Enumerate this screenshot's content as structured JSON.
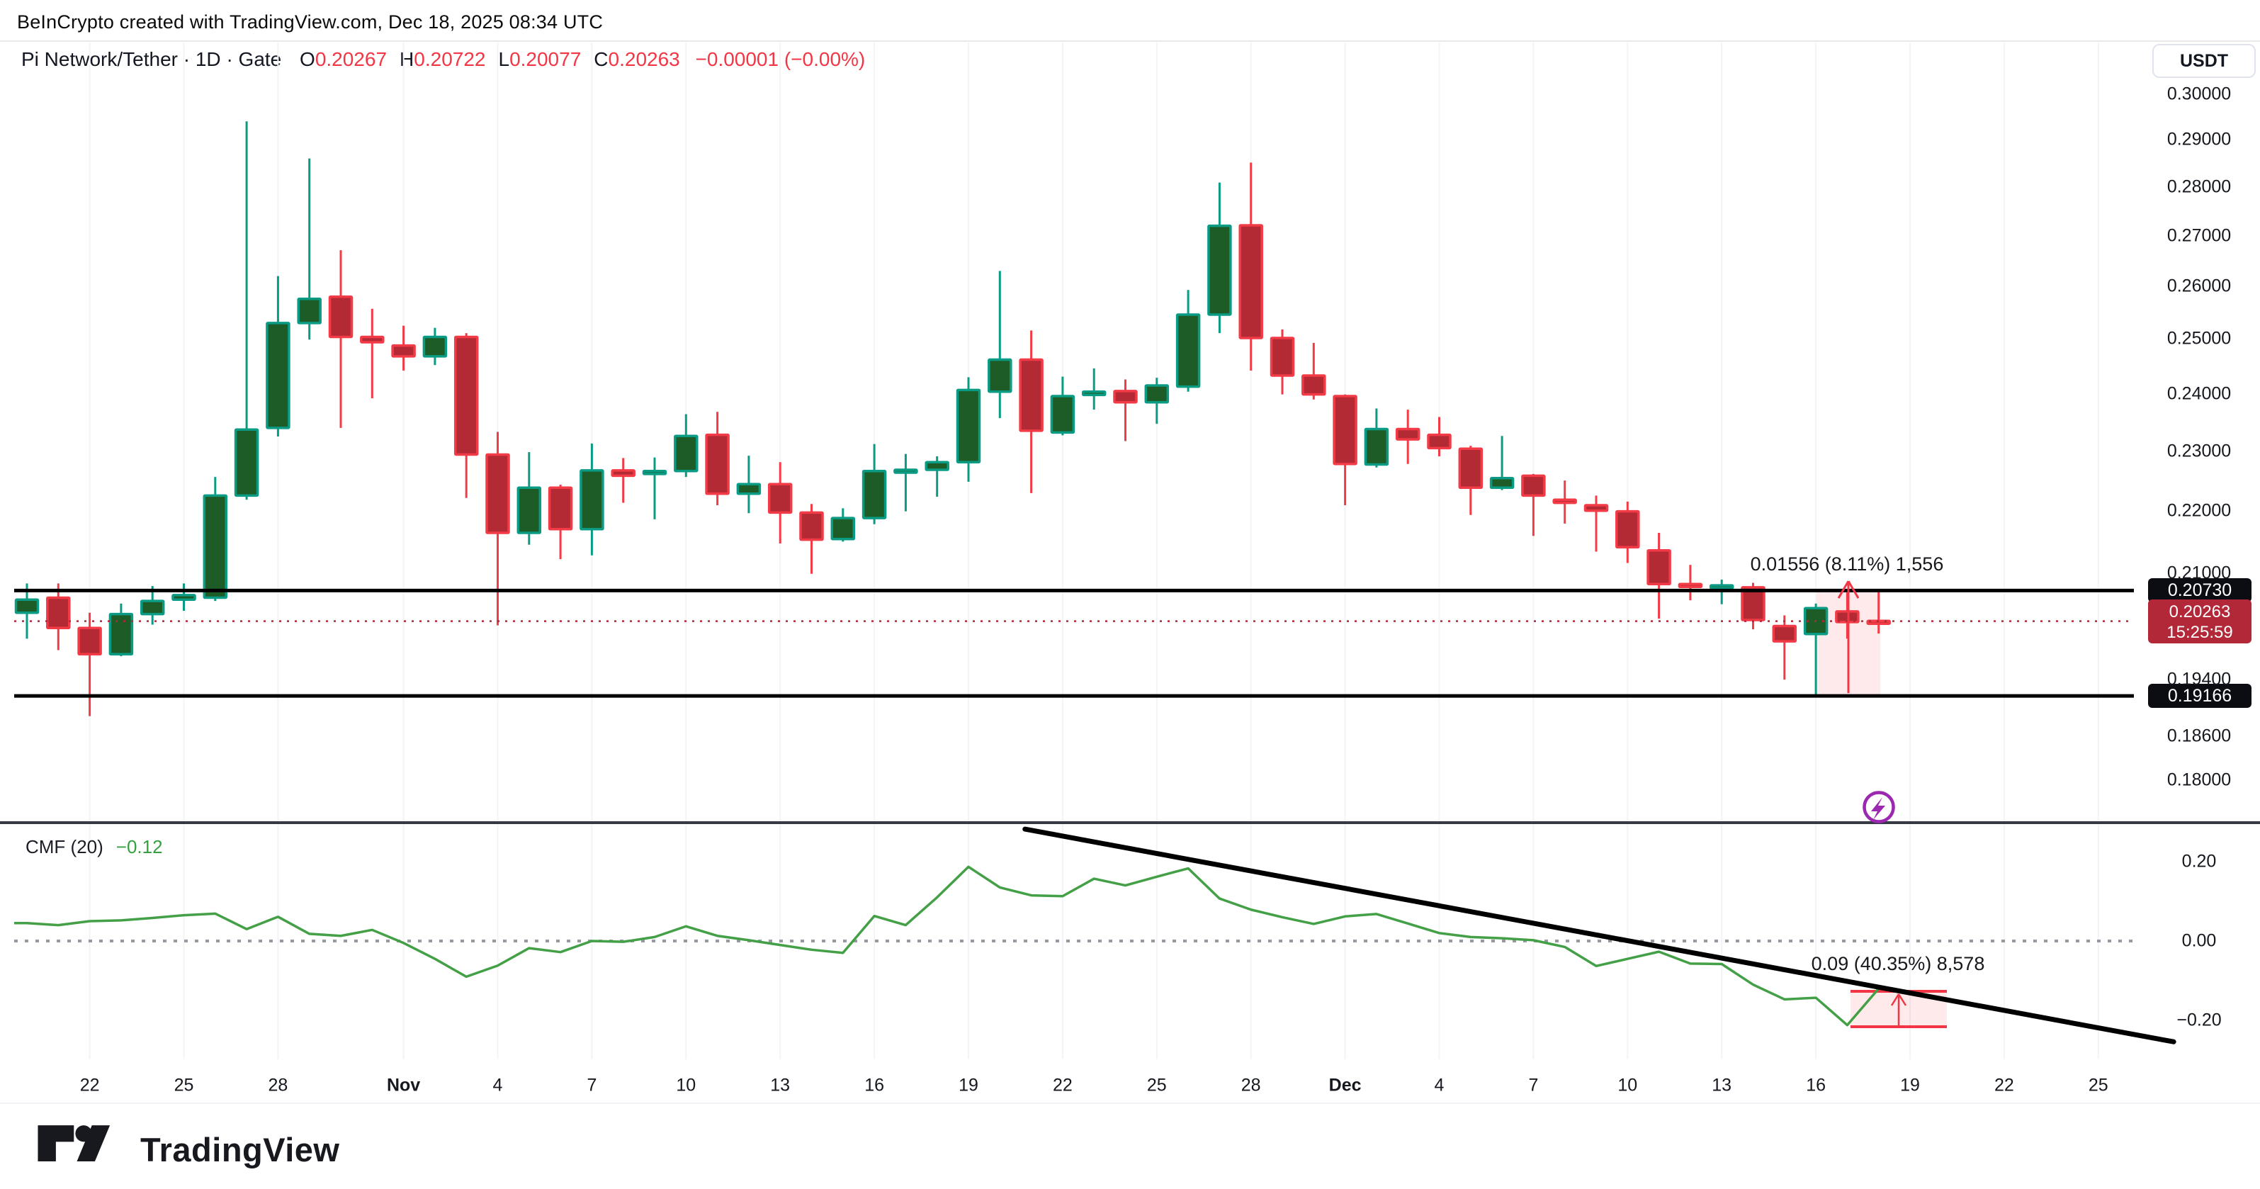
{
  "header": {
    "attribution": "BeInCrypto created with TradingView.com, Dec 18, 2025 08:34 UTC"
  },
  "legend": {
    "symbol": "Pi Network/Tether",
    "sep": "·",
    "interval": "1D",
    "exchange": "Gate",
    "fields": [
      {
        "k": "O",
        "v": "0.20267"
      },
      {
        "k": "H",
        "v": "0.20722"
      },
      {
        "k": "L",
        "v": "0.20077"
      },
      {
        "k": "C",
        "v": "0.20263"
      }
    ],
    "change": "−0.00001 (−0.00%)"
  },
  "price_axis": {
    "currency": "USDT",
    "ticks": [
      {
        "label": "0.30000",
        "value": 0.3
      },
      {
        "label": "0.29000",
        "value": 0.29
      },
      {
        "label": "0.28000",
        "value": 0.28
      },
      {
        "label": "0.27000",
        "value": 0.27
      },
      {
        "label": "0.26000",
        "value": 0.26
      },
      {
        "label": "0.25000",
        "value": 0.25
      },
      {
        "label": "0.24000",
        "value": 0.24
      },
      {
        "label": "0.23000",
        "value": 0.23
      },
      {
        "label": "0.22000",
        "value": 0.22
      },
      {
        "label": "0.21000",
        "value": 0.21
      },
      {
        "label": "0.19400",
        "value": 0.194
      },
      {
        "label": "0.18600",
        "value": 0.186
      },
      {
        "label": "0.18000",
        "value": 0.18
      }
    ],
    "resistance_label": "0.20730",
    "support_label": "0.19166",
    "last_price_label": "0.20263",
    "countdown": "15:25:59"
  },
  "indicator_legend": {
    "title": "CMF (20)",
    "value": "−0.12"
  },
  "cmf_axis": {
    "ticks": [
      {
        "label": "0.20",
        "value": 0.2
      },
      {
        "label": "0.00",
        "value": 0.0
      },
      {
        "label": "−0.20",
        "value": -0.2
      }
    ]
  },
  "annotations": {
    "price_measure": "0.01556 (8.11%) 1,556",
    "cmf_measure": "0.09 (40.35%) 8,578"
  },
  "x_axis": {
    "ticks": [
      {
        "label": "22",
        "day": 2
      },
      {
        "label": "25",
        "day": 5
      },
      {
        "label": "28",
        "day": 8
      },
      {
        "label": "Nov",
        "day": 12,
        "bold": true
      },
      {
        "label": "4",
        "day": 15
      },
      {
        "label": "7",
        "day": 18
      },
      {
        "label": "10",
        "day": 21
      },
      {
        "label": "13",
        "day": 24
      },
      {
        "label": "16",
        "day": 27
      },
      {
        "label": "19",
        "day": 30
      },
      {
        "label": "22",
        "day": 33
      },
      {
        "label": "25",
        "day": 36
      },
      {
        "label": "28",
        "day": 39
      },
      {
        "label": "Dec",
        "day": 42,
        "bold": true
      },
      {
        "label": "4",
        "day": 45
      },
      {
        "label": "7",
        "day": 48
      },
      {
        "label": "10",
        "day": 51
      },
      {
        "label": "13",
        "day": 54
      },
      {
        "label": "16",
        "day": 57
      },
      {
        "label": "19",
        "day": 60
      },
      {
        "label": "22",
        "day": 63
      },
      {
        "label": "25",
        "day": 66
      }
    ]
  },
  "footer": {
    "brand": "TradingView"
  },
  "colors": {
    "up_body": "#1d5c26",
    "up_border": "#0a9b84",
    "down_body": "#b32a35",
    "down_border": "#f23b46",
    "sr_line": "#000000",
    "dotted_price": "#b22838",
    "cmf_line": "#43a047",
    "zero_line": "#7e828c",
    "grid": "#f3f4f6",
    "divider": "#363a45",
    "measure_fill": "rgba(242,54,69,0.11)",
    "measure_red": "#f23645",
    "lightning": "#9c27b0"
  },
  "chart_data": {
    "type": "candlestick",
    "title": "Pi Network/Tether · 1D · Gate",
    "quote_currency": "USDT",
    "price_scale": "log",
    "dates": [
      "Oct 20",
      "Oct 21",
      "Oct 22",
      "Oct 23",
      "Oct 24",
      "Oct 25",
      "Oct 26",
      "Oct 27",
      "Oct 28",
      "Oct 29",
      "Oct 30",
      "Oct 31",
      "Nov 1",
      "Nov 2",
      "Nov 3",
      "Nov 4",
      "Nov 5",
      "Nov 6",
      "Nov 7",
      "Nov 8",
      "Nov 9",
      "Nov 10",
      "Nov 11",
      "Nov 12",
      "Nov 13",
      "Nov 14",
      "Nov 15",
      "Nov 16",
      "Nov 17",
      "Nov 18",
      "Nov 19",
      "Nov 20",
      "Nov 21",
      "Nov 22",
      "Nov 23",
      "Nov 24",
      "Nov 25",
      "Nov 26",
      "Nov 27",
      "Nov 28",
      "Nov 29",
      "Nov 30",
      "Dec 1",
      "Dec 2",
      "Dec 3",
      "Dec 4",
      "Dec 5",
      "Dec 6",
      "Dec 7",
      "Dec 8",
      "Dec 9",
      "Dec 10",
      "Dec 11",
      "Dec 12",
      "Dec 13",
      "Dec 14",
      "Dec 15",
      "Dec 16",
      "Dec 17",
      "Dec 18"
    ],
    "ohlc": [
      [
        0.2039,
        0.2084,
        0.2,
        0.2059
      ],
      [
        0.2062,
        0.2084,
        0.1983,
        0.2016
      ],
      [
        0.2016,
        0.2039,
        0.1888,
        0.1977
      ],
      [
        0.1977,
        0.2053,
        0.1974,
        0.2037
      ],
      [
        0.2037,
        0.208,
        0.2021,
        0.2057
      ],
      [
        0.2059,
        0.2084,
        0.2042,
        0.2066
      ],
      [
        0.2062,
        0.2256,
        0.2057,
        0.2225
      ],
      [
        0.2225,
        0.294,
        0.2218,
        0.2337
      ],
      [
        0.234,
        0.262,
        0.2325,
        0.253
      ],
      [
        0.253,
        0.286,
        0.2499,
        0.2576
      ],
      [
        0.258,
        0.2671,
        0.234,
        0.2504
      ],
      [
        0.2504,
        0.2557,
        0.2392,
        0.2494
      ],
      [
        0.2488,
        0.2525,
        0.2442,
        0.2468
      ],
      [
        0.2468,
        0.2521,
        0.2452,
        0.2504
      ],
      [
        0.2504,
        0.2511,
        0.2221,
        0.2294
      ],
      [
        0.2294,
        0.2333,
        0.202,
        0.2164
      ],
      [
        0.2164,
        0.2298,
        0.2145,
        0.2238
      ],
      [
        0.2238,
        0.2243,
        0.2122,
        0.217
      ],
      [
        0.217,
        0.2313,
        0.2128,
        0.2267
      ],
      [
        0.2267,
        0.2288,
        0.2213,
        0.2258
      ],
      [
        0.2261,
        0.2289,
        0.2186,
        0.2266
      ],
      [
        0.2266,
        0.2364,
        0.2256,
        0.2326
      ],
      [
        0.2328,
        0.2368,
        0.2209,
        0.2228
      ],
      [
        0.2228,
        0.2292,
        0.2196,
        0.2244
      ],
      [
        0.2244,
        0.2281,
        0.2147,
        0.2197
      ],
      [
        0.2197,
        0.2211,
        0.2099,
        0.2153
      ],
      [
        0.2154,
        0.2204,
        0.215,
        0.2188
      ],
      [
        0.2188,
        0.2312,
        0.2178,
        0.2266
      ],
      [
        0.2264,
        0.2295,
        0.2199,
        0.2268
      ],
      [
        0.2268,
        0.2291,
        0.2223,
        0.2281
      ],
      [
        0.2281,
        0.243,
        0.2248,
        0.2407
      ],
      [
        0.2404,
        0.263,
        0.2357,
        0.2462
      ],
      [
        0.2462,
        0.2516,
        0.2229,
        0.2335
      ],
      [
        0.2332,
        0.2431,
        0.2327,
        0.2396
      ],
      [
        0.2398,
        0.2446,
        0.2372,
        0.2404
      ],
      [
        0.2405,
        0.2426,
        0.2317,
        0.2385
      ],
      [
        0.2385,
        0.2429,
        0.2347,
        0.2415
      ],
      [
        0.2413,
        0.2593,
        0.2404,
        0.2546
      ],
      [
        0.2546,
        0.2809,
        0.2511,
        0.272
      ],
      [
        0.2721,
        0.2851,
        0.2442,
        0.2502
      ],
      [
        0.2502,
        0.2518,
        0.2399,
        0.2433
      ],
      [
        0.2433,
        0.2493,
        0.239,
        0.2399
      ],
      [
        0.2396,
        0.2399,
        0.2209,
        0.2278
      ],
      [
        0.2277,
        0.2374,
        0.2272,
        0.2338
      ],
      [
        0.2338,
        0.2372,
        0.2278,
        0.232
      ],
      [
        0.2328,
        0.2359,
        0.2291,
        0.2305
      ],
      [
        0.2304,
        0.2309,
        0.2193,
        0.2238
      ],
      [
        0.2238,
        0.2326,
        0.2234,
        0.2254
      ],
      [
        0.2258,
        0.2261,
        0.2159,
        0.2225
      ],
      [
        0.2218,
        0.225,
        0.2179,
        0.2213
      ],
      [
        0.2209,
        0.2225,
        0.2134,
        0.22
      ],
      [
        0.2199,
        0.2215,
        0.2116,
        0.2141
      ],
      [
        0.2136,
        0.2164,
        0.203,
        0.2083
      ],
      [
        0.2083,
        0.2113,
        0.2058,
        0.2079
      ],
      [
        0.2077,
        0.209,
        0.2052,
        0.2081
      ],
      [
        0.2078,
        0.2085,
        0.2014,
        0.2028
      ],
      [
        0.2019,
        0.2035,
        0.194,
        0.1996
      ],
      [
        0.2007,
        0.2053,
        0.1917,
        0.2046
      ],
      [
        0.2041,
        0.207,
        0.2,
        0.2025
      ],
      [
        0.20267,
        0.20722,
        0.20077,
        0.20263
      ]
    ],
    "horizontal_lines": [
      {
        "name": "resistance",
        "price": 0.2073
      },
      {
        "name": "support",
        "price": 0.19166
      }
    ],
    "last_price": 0.20263,
    "price_measure": {
      "price_from": 0.19166,
      "price_to": 0.20722,
      "label": "0.01556 (8.11%) 1,556"
    },
    "indicator": {
      "name": "CMF",
      "length": 20,
      "current": -0.12,
      "values": [
        0.045,
        0.04,
        0.05,
        0.052,
        0.058,
        0.065,
        0.069,
        0.03,
        0.061,
        0.018,
        0.013,
        0.028,
        -0.005,
        -0.045,
        -0.09,
        -0.062,
        -0.018,
        -0.028,
        0.0,
        -0.002,
        0.01,
        0.037,
        0.013,
        0.002,
        -0.01,
        -0.022,
        -0.03,
        0.063,
        0.04,
        0.11,
        0.187,
        0.135,
        0.115,
        0.113,
        0.157,
        0.14,
        0.162,
        0.183,
        0.107,
        0.079,
        0.06,
        0.043,
        0.062,
        0.068,
        0.044,
        0.02,
        0.01,
        0.007,
        0.002,
        -0.015,
        -0.063,
        -0.045,
        -0.027,
        -0.057,
        -0.058,
        -0.11,
        -0.147,
        -0.143,
        -0.212,
        -0.12
      ],
      "axis_range": [
        -0.3,
        0.3
      ],
      "measure": {
        "value_from": -0.216,
        "value_to": -0.127,
        "label": "0.09 (40.35%) 8,578"
      },
      "trendline": {
        "from_day": 31.8,
        "from_value": 0.282,
        "to_day": 68.4,
        "to_value": -0.254
      }
    },
    "xlabel": "",
    "ylabel": "",
    "grid": "vertical-only",
    "legend_position": "top-left"
  }
}
